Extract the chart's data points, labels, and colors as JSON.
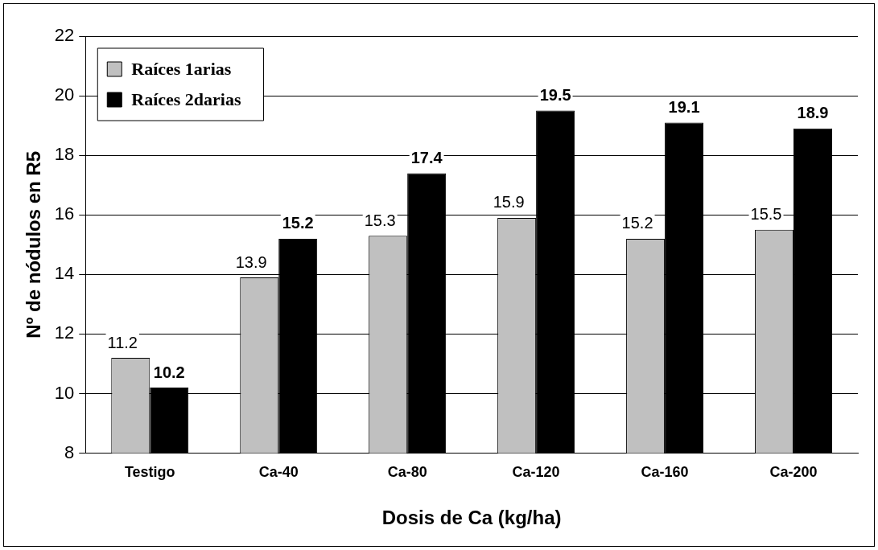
{
  "chart_data": {
    "type": "bar",
    "xlabel": "Dosis de Ca (kg/ha)",
    "ylabel": "Nº de nódulos en R5",
    "categories": [
      "Testigo",
      "Ca-40",
      "Ca-80",
      "Ca-120",
      "Ca-160",
      "Ca-200"
    ],
    "series": [
      {
        "name": "Raíces 1arias",
        "color": "#c0c0c0",
        "values": [
          11.2,
          13.9,
          15.3,
          15.9,
          15.2,
          15.5
        ]
      },
      {
        "name": "Raíces 2darias",
        "color": "#000000",
        "values": [
          10.2,
          15.2,
          17.4,
          19.5,
          19.1,
          18.9
        ]
      }
    ],
    "ylim": [
      8,
      22
    ],
    "yticks": [
      8,
      10,
      12,
      14,
      16,
      18,
      20,
      22
    ],
    "grid": "y",
    "legend": "top left",
    "data_labels": true
  }
}
